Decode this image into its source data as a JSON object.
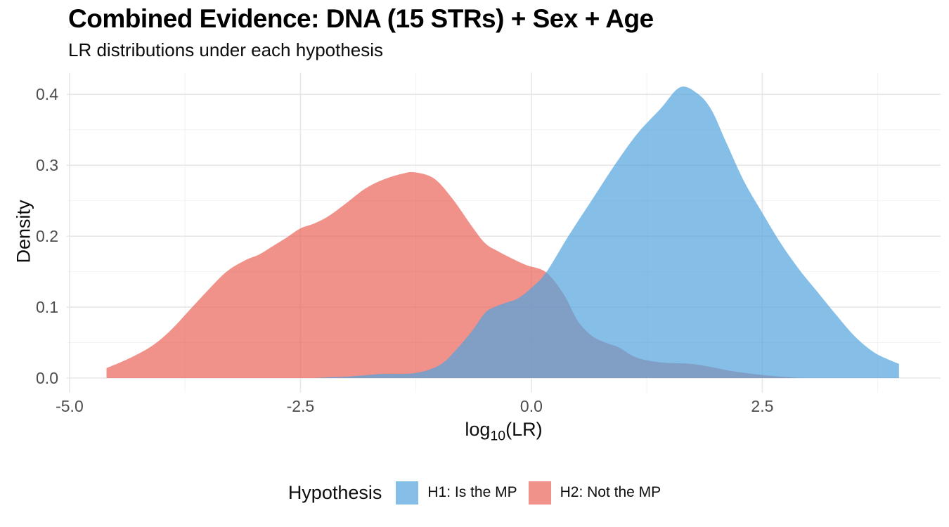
{
  "title": "Combined Evidence: DNA (15 STRs) + Sex + Age",
  "subtitle": "LR distributions under each hypothesis",
  "chart_data": {
    "type": "area",
    "title": "Combined Evidence: DNA (15 STRs) + Sex + Age",
    "subtitle": "LR distributions under each hypothesis",
    "xlabel": "log10(LR)",
    "xlabel_pre": "log",
    "xlabel_sub": "10",
    "xlabel_post": "(LR)",
    "ylabel": "Density",
    "xlim": [
      -5.03,
      4.43
    ],
    "ylim": [
      -0.0205,
      0.4305
    ],
    "x_ticks": [
      -5.0,
      -2.5,
      0.0,
      2.5
    ],
    "x_tick_labels": [
      "-5.0",
      "-2.5",
      "0.0",
      "2.5"
    ],
    "x_minor_ticks": [
      -3.75,
      -1.25,
      1.25,
      3.75
    ],
    "y_ticks": [
      0.0,
      0.1,
      0.2,
      0.3,
      0.4
    ],
    "y_tick_labels": [
      "0.0",
      "0.1",
      "0.2",
      "0.3",
      "0.4"
    ],
    "y_minor_ticks": [
      0.05,
      0.15,
      0.25,
      0.35
    ],
    "grid": "on",
    "legend_position": "bottom",
    "legend_title": "Hypothesis",
    "colors": {
      "grid_major": "#e7e7e7",
      "grid_minor": "#f2f2f2",
      "tick_text": "#4d4d4d",
      "text": "#0d0d0d",
      "background": "#ffffff"
    },
    "fill_opacity": 0.7,
    "series": [
      {
        "name": "H1: Is the MP",
        "color": "#51a4de",
        "peak": {
          "x": 1.61,
          "density": 0.41
        },
        "points": [
          [
            -2.35,
            0.0
          ],
          [
            -2.2,
            0.001
          ],
          [
            -2.0,
            0.002
          ],
          [
            -1.8,
            0.004
          ],
          [
            -1.6,
            0.006
          ],
          [
            -1.4,
            0.006
          ],
          [
            -1.26,
            0.007
          ],
          [
            -1.1,
            0.012
          ],
          [
            -0.95,
            0.022
          ],
          [
            -0.8,
            0.042
          ],
          [
            -0.65,
            0.065
          ],
          [
            -0.5,
            0.092
          ],
          [
            -0.4,
            0.1
          ],
          [
            -0.28,
            0.106
          ],
          [
            -0.15,
            0.112
          ],
          [
            0.0,
            0.127
          ],
          [
            0.16,
            0.149
          ],
          [
            0.4,
            0.2
          ],
          [
            0.65,
            0.25
          ],
          [
            0.9,
            0.3
          ],
          [
            1.15,
            0.345
          ],
          [
            1.4,
            0.38
          ],
          [
            1.61,
            0.41
          ],
          [
            1.8,
            0.401
          ],
          [
            1.95,
            0.378
          ],
          [
            2.1,
            0.335
          ],
          [
            2.3,
            0.278
          ],
          [
            2.5,
            0.233
          ],
          [
            2.7,
            0.19
          ],
          [
            2.9,
            0.153
          ],
          [
            3.1,
            0.121
          ],
          [
            3.3,
            0.089
          ],
          [
            3.5,
            0.059
          ],
          [
            3.7,
            0.037
          ],
          [
            3.85,
            0.027
          ],
          [
            3.98,
            0.02
          ]
        ]
      },
      {
        "name": "H2: Not the MP",
        "color": "#e96258",
        "peak": {
          "x": -1.26,
          "density": 0.29
        },
        "points": [
          [
            -4.6,
            0.014
          ],
          [
            -4.35,
            0.028
          ],
          [
            -4.1,
            0.046
          ],
          [
            -3.9,
            0.068
          ],
          [
            -3.7,
            0.096
          ],
          [
            -3.5,
            0.124
          ],
          [
            -3.3,
            0.15
          ],
          [
            -3.1,
            0.166
          ],
          [
            -2.95,
            0.174
          ],
          [
            -2.8,
            0.186
          ],
          [
            -2.65,
            0.198
          ],
          [
            -2.5,
            0.211
          ],
          [
            -2.35,
            0.218
          ],
          [
            -2.2,
            0.228
          ],
          [
            -2.0,
            0.247
          ],
          [
            -1.8,
            0.267
          ],
          [
            -1.6,
            0.28
          ],
          [
            -1.4,
            0.288
          ],
          [
            -1.26,
            0.29
          ],
          [
            -1.05,
            0.281
          ],
          [
            -0.85,
            0.252
          ],
          [
            -0.65,
            0.215
          ],
          [
            -0.5,
            0.19
          ],
          [
            -0.35,
            0.178
          ],
          [
            -0.2,
            0.168
          ],
          [
            -0.05,
            0.159
          ],
          [
            0.16,
            0.149
          ],
          [
            0.35,
            0.118
          ],
          [
            0.5,
            0.081
          ],
          [
            0.65,
            0.06
          ],
          [
            0.8,
            0.05
          ],
          [
            0.95,
            0.043
          ],
          [
            1.1,
            0.031
          ],
          [
            1.25,
            0.025
          ],
          [
            1.45,
            0.0215
          ],
          [
            1.73,
            0.02
          ],
          [
            1.95,
            0.0155
          ],
          [
            2.16,
            0.01
          ],
          [
            2.45,
            0.005
          ],
          [
            2.75,
            0.0015
          ],
          [
            2.95,
            0.0
          ]
        ]
      }
    ]
  }
}
